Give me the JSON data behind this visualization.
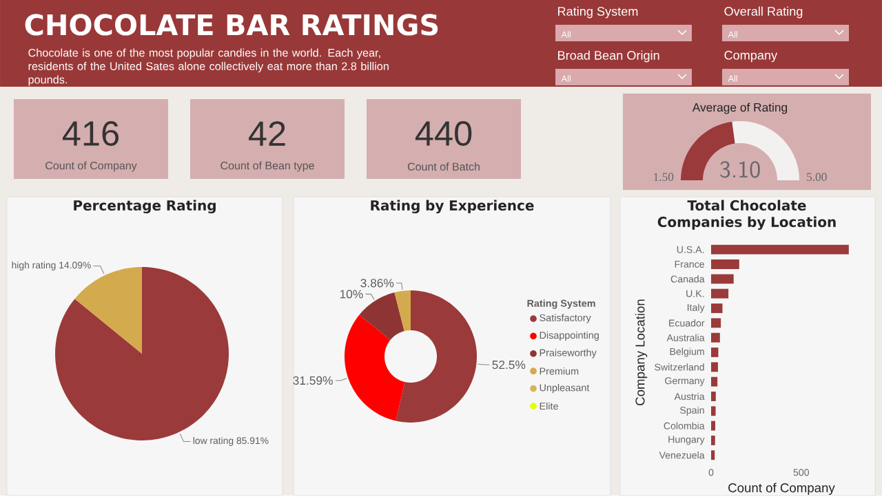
{
  "chart_data": [
    {
      "type": "other",
      "title": "CHOCOLATE BAR RATINGS",
      "subtitle": "Chocolate is one of the most popular candies in the world. Each year, residents of the United Sates alone collectively eat more than 2.8 billion pounds.",
      "annotations": [
        "Rating System",
        "All",
        "Overall Rating",
        "All",
        "Broad Bean Origin",
        "All",
        "Company",
        "All"
      ]
    },
    {
      "type": "other",
      "categories": [
        "Count of Company",
        "Count of Bean type",
        "Count of Batch"
      ],
      "values": [
        416,
        42,
        440
      ],
      "value_labels": [
        "416",
        "42",
        "440"
      ]
    },
    {
      "type": "donut",
      "title": "Average of Rating",
      "categories": [
        null,
        null
      ],
      "values": [
        45.71,
        54.29
      ],
      "colors": [
        "#9b3a3a",
        "#f3f1f0"
      ],
      "annotations": [
        "3.10",
        "1.50",
        "5.00"
      ]
    },
    {
      "type": "pie",
      "title": "Percentage Rating",
      "categories": [
        "low rating",
        "high rating"
      ],
      "values": [
        85.91,
        14.09
      ],
      "value_labels": [
        "85.91%",
        "14.09%"
      ],
      "colors": [
        "#9b3a3a",
        "#d4aa4e"
      ]
    },
    {
      "type": "donut",
      "title": "Rating by Experience",
      "legend_title": "Rating System",
      "legend": "right",
      "categories": [
        "Satisfactory",
        "Disappointing",
        "Praiseworthy",
        "Premium",
        "Unpleasant",
        "Elite"
      ],
      "values": [
        52.5,
        31.59,
        10,
        3.86,
        null,
        null
      ],
      "value_labels": [
        "52.5%",
        "31.59%",
        "10%",
        "3.86%",
        null,
        null
      ],
      "colors": [
        "#9b3a3a",
        "#ff0000",
        "#8e3434",
        "#d4aa4e",
        "#d8b35a",
        "#e5ff00"
      ]
    },
    {
      "type": "bar",
      "orientation": "horizontal",
      "title": "Total Chocolate Companies by Location",
      "xlabel": "Count of Company",
      "ylabel": "Company Location",
      "categories": [
        "U.S.A.",
        "France",
        "Canada",
        "U.K.",
        "Italy",
        "Ecuador",
        "Australia",
        "Belgium",
        "Switzerland",
        "Germany",
        "Austria",
        "Spain",
        "Colombia",
        "Hungary",
        "Venezuela"
      ],
      "values": [
        764,
        156,
        125,
        96,
        63,
        54,
        49,
        40,
        38,
        35,
        26,
        25,
        23,
        22,
        20
      ],
      "color": "#9b3a3a",
      "xlim": [
        0,
        780
      ],
      "xticks": [
        0,
        500
      ]
    }
  ]
}
